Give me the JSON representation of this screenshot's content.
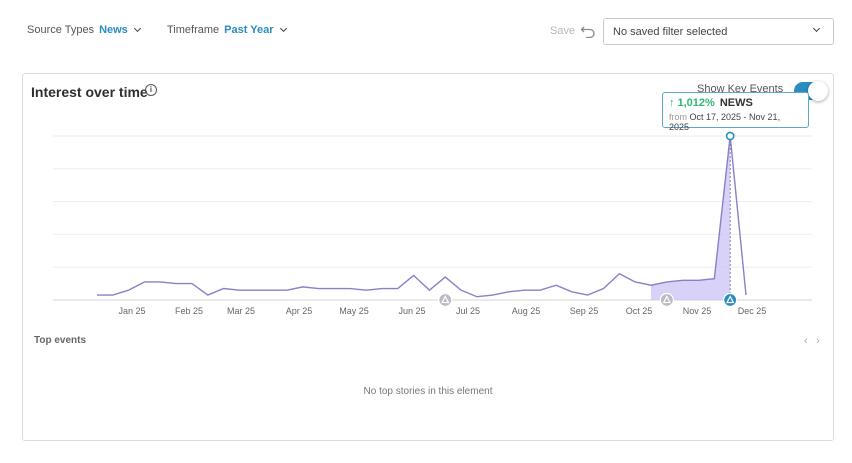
{
  "filters": {
    "source_types": {
      "label": "Source Types",
      "value": "News"
    },
    "timeframe": {
      "label": "Timeframe",
      "value": "Past Year"
    }
  },
  "toolbar": {
    "save_label": "Save",
    "saved_filter_text": "No saved filter selected"
  },
  "card": {
    "title": "Interest over time",
    "show_key_events_label": "Show Key Events",
    "show_key_events_on": true,
    "tooltip": {
      "change": "1,012%",
      "source": "NEWS",
      "from_label": "from",
      "range": "Oct 17, 2025 - Nov 21, 2025"
    },
    "top_events_title": "Top events",
    "empty_message": "No top stories in this element"
  },
  "chart_data": {
    "type": "line",
    "x_labels": [
      "Jan 25",
      "Feb 25",
      "Mar 25",
      "Apr 25",
      "May 25",
      "Jun 25",
      "Jul 25",
      "Aug 25",
      "Sep 25",
      "Oct 25",
      "Nov 25",
      "Dec 25"
    ],
    "values": [
      3,
      3,
      6,
      11,
      11,
      10,
      10,
      3,
      7,
      6,
      6,
      6,
      6,
      8,
      7,
      7,
      7,
      6,
      7,
      7,
      15,
      6,
      14,
      6,
      2,
      3,
      5,
      6,
      6,
      9,
      5,
      3,
      7,
      16,
      11,
      9,
      11,
      12,
      12,
      13,
      100,
      3
    ],
    "highlight_range": [
      35,
      40
    ],
    "peak_index": 40,
    "key_event_indices": [
      22,
      36,
      40
    ],
    "grid": true,
    "colors": {
      "line": "#8b7fc9",
      "fill": "#cbc2f5",
      "peak": "#2b8cbf",
      "event_marker": "#b9bcc3"
    }
  }
}
